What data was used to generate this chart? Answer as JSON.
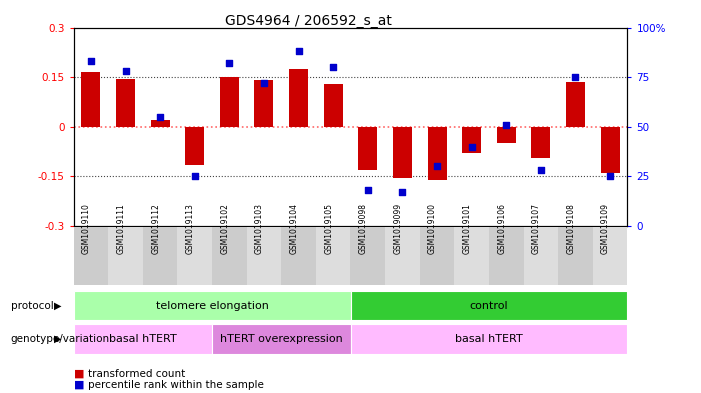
{
  "title": "GDS4964 / 206592_s_at",
  "samples": [
    "GSM1019110",
    "GSM1019111",
    "GSM1019112",
    "GSM1019113",
    "GSM1019102",
    "GSM1019103",
    "GSM1019104",
    "GSM1019105",
    "GSM1019098",
    "GSM1019099",
    "GSM1019100",
    "GSM1019101",
    "GSM1019106",
    "GSM1019107",
    "GSM1019108",
    "GSM1019109"
  ],
  "red_bars": [
    0.165,
    0.143,
    0.02,
    -0.115,
    0.15,
    0.14,
    0.175,
    0.13,
    -0.13,
    -0.155,
    -0.16,
    -0.08,
    -0.05,
    -0.095,
    0.135,
    -0.14
  ],
  "blue_dots_pct": [
    83,
    78,
    55,
    25,
    82,
    72,
    88,
    80,
    18,
    17,
    30,
    40,
    51,
    28,
    75,
    25
  ],
  "ylim": [
    -0.3,
    0.3
  ],
  "yticks_left": [
    -0.3,
    -0.15,
    0,
    0.15,
    0.3
  ],
  "yticks_right": [
    0,
    25,
    50,
    75,
    100
  ],
  "protocol_groups": [
    {
      "label": "telomere elongation",
      "start": 0,
      "end": 8,
      "color": "#aaffaa"
    },
    {
      "label": "control",
      "start": 8,
      "end": 16,
      "color": "#33cc33"
    }
  ],
  "genotype_groups": [
    {
      "label": "basal hTERT",
      "start": 0,
      "end": 4,
      "color": "#ffbbff"
    },
    {
      "label": "hTERT overexpression",
      "start": 4,
      "end": 8,
      "color": "#dd88dd"
    },
    {
      "label": "basal hTERT",
      "start": 8,
      "end": 16,
      "color": "#ffbbff"
    }
  ],
  "bar_color": "#cc0000",
  "dot_color": "#0000cc",
  "zero_line_color": "#ff6666",
  "hline_color": "#444444",
  "bg_color": "#ffffff"
}
